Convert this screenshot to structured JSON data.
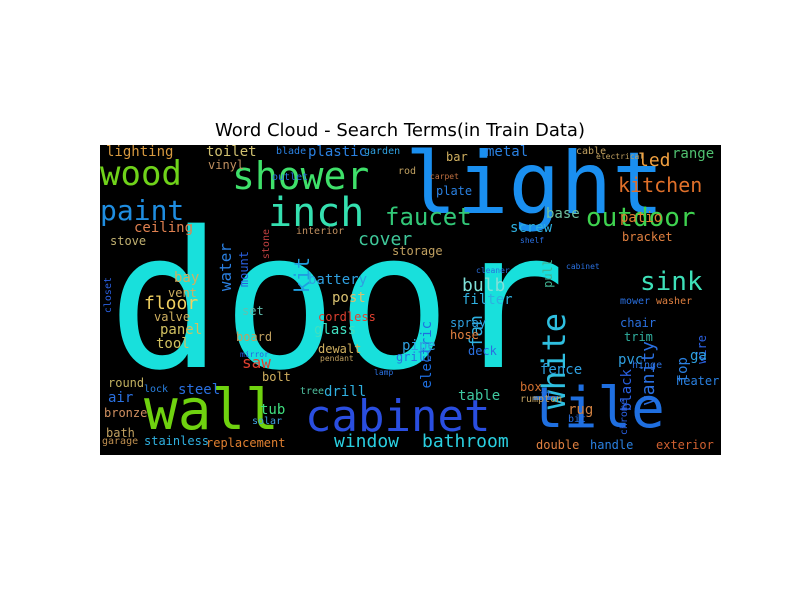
{
  "title": "Word Cloud - Search Terms(in Train Data)",
  "colors": {
    "background": "#000000",
    "page": "#ffffff"
  },
  "words": [
    {
      "text": "door",
      "color": "#18e0dc"
    },
    {
      "text": "light",
      "color": "#1a8ff0"
    },
    {
      "text": "wall",
      "color": "#6fd20f"
    },
    {
      "text": "tile",
      "color": "#1f6fe0"
    },
    {
      "text": "cabinet",
      "color": "#2a4ee0"
    },
    {
      "text": "shower",
      "color": "#3fe06a"
    },
    {
      "text": "inch",
      "color": "#35e0b0"
    },
    {
      "text": "wood",
      "color": "#6fd21a"
    },
    {
      "text": "paint",
      "color": "#1f8de0"
    },
    {
      "text": "white",
      "color": "#2fbfe0"
    },
    {
      "text": "faucet",
      "color": "#32c878"
    },
    {
      "text": "outdoor",
      "color": "#3ed24f"
    },
    {
      "text": "kitchen",
      "color": "#e0702a"
    },
    {
      "text": "sink",
      "color": "#3ee0b8"
    },
    {
      "text": "window",
      "color": "#2acfe0"
    },
    {
      "text": "bathroom",
      "color": "#2acfe0"
    },
    {
      "text": "cover",
      "color": "#3fc89a"
    },
    {
      "text": "floor",
      "color": "#f0d060"
    },
    {
      "text": "vanity",
      "color": "#2a6fe0"
    },
    {
      "text": "led",
      "color": "#f0a040"
    },
    {
      "text": "lighting",
      "color": "#d89a40"
    },
    {
      "text": "toilet",
      "color": "#d0c070"
    },
    {
      "text": "water",
      "color": "#2a7fe0"
    },
    {
      "text": "kit",
      "color": "#1f9fe0"
    },
    {
      "text": "fan",
      "color": "#2fb0e0"
    },
    {
      "text": "bulb",
      "color": "#7fe0d8"
    },
    {
      "text": "plastic",
      "color": "#2a80e0"
    },
    {
      "text": "metal",
      "color": "#2a80e0"
    },
    {
      "text": "ceiling",
      "color": "#e08050"
    },
    {
      "text": "steel",
      "color": "#2a70e0"
    },
    {
      "text": "saw",
      "color": "#e04030"
    },
    {
      "text": "drill",
      "color": "#2fb0e0"
    },
    {
      "text": "post",
      "color": "#d8c070"
    },
    {
      "text": "glass",
      "color": "#40e0c0"
    },
    {
      "text": "panel",
      "color": "#d0c060"
    },
    {
      "text": "tool",
      "color": "#d0c060"
    },
    {
      "text": "air",
      "color": "#2a70e0"
    },
    {
      "text": "bronze",
      "color": "#d09060"
    },
    {
      "text": "tub",
      "color": "#40e080"
    },
    {
      "text": "bath",
      "color": "#c0a060"
    },
    {
      "text": "stainless",
      "color": "#2fb0e0"
    },
    {
      "text": "replacement",
      "color": "#e08030"
    },
    {
      "text": "electric",
      "color": "#1f6fe0"
    },
    {
      "text": "filter",
      "color": "#2fb0e0"
    },
    {
      "text": "pipe",
      "color": "#2fa0e0"
    },
    {
      "text": "fence",
      "color": "#2fa0e0"
    },
    {
      "text": "screw",
      "color": "#2fb0e0"
    },
    {
      "text": "base",
      "color": "#6fc0a0"
    },
    {
      "text": "patio",
      "color": "#e08030"
    },
    {
      "text": "range",
      "color": "#50c070"
    },
    {
      "text": "black",
      "color": "#2a60e0"
    },
    {
      "text": "table",
      "color": "#3fc8a0"
    },
    {
      "text": "rug",
      "color": "#d08040"
    },
    {
      "text": "handle",
      "color": "#2a80e0"
    },
    {
      "text": "exterior",
      "color": "#d06030"
    },
    {
      "text": "double",
      "color": "#e08040"
    },
    {
      "text": "heater",
      "color": "#2a80e0"
    },
    {
      "text": "pvc",
      "color": "#2fa0e0"
    },
    {
      "text": "wire",
      "color": "#2a60e0"
    },
    {
      "text": "top",
      "color": "#2a80e0"
    },
    {
      "text": "ga",
      "color": "#2fa0e0"
    },
    {
      "text": "trim",
      "color": "#30b0a0"
    },
    {
      "text": "chair",
      "color": "#2a70e0"
    },
    {
      "text": "bay",
      "color": "#d0b060"
    },
    {
      "text": "vent",
      "color": "#d0b060"
    },
    {
      "text": "valve",
      "color": "#d0b060"
    },
    {
      "text": "round",
      "color": "#c0b060"
    },
    {
      "text": "battery",
      "color": "#2fa0e0"
    },
    {
      "text": "cordless",
      "color": "#e04030"
    },
    {
      "text": "dewalt",
      "color": "#d0b060"
    },
    {
      "text": "set",
      "color": "#60c0b0"
    },
    {
      "text": "board",
      "color": "#c0a060"
    },
    {
      "text": "bolt",
      "color": "#d0b060"
    },
    {
      "text": "spray",
      "color": "#2fa0e0"
    },
    {
      "text": "hose",
      "color": "#e08040"
    },
    {
      "text": "grill",
      "color": "#2a70e0"
    },
    {
      "text": "deck",
      "color": "#2a70e0"
    },
    {
      "text": "box",
      "color": "#d07030"
    },
    {
      "text": "bar",
      "color": "#d0b060"
    },
    {
      "text": "stove",
      "color": "#c0b070"
    },
    {
      "text": "storage",
      "color": "#c0a060"
    },
    {
      "text": "garage",
      "color": "#c09050"
    },
    {
      "text": "solar",
      "color": "#40a0e0"
    },
    {
      "text": "lock",
      "color": "#2a80e0"
    },
    {
      "text": "tree",
      "color": "#50c0a0"
    },
    {
      "text": "blade",
      "color": "#2a80e0"
    },
    {
      "text": "vinyl",
      "color": "#c09060"
    },
    {
      "text": "garden",
      "color": "#2fa0e0"
    },
    {
      "text": "plate",
      "color": "#2a80e0"
    },
    {
      "text": "bracket",
      "color": "#e08040"
    },
    {
      "text": "outlet",
      "color": "#2a70e0"
    },
    {
      "text": "interior",
      "color": "#c09060"
    },
    {
      "text": "mount",
      "color": "#2a60e0"
    },
    {
      "text": "closet",
      "color": "#2a60e0"
    },
    {
      "text": "pull",
      "color": "#40b090"
    },
    {
      "text": "mower",
      "color": "#2a70e0"
    },
    {
      "text": "washer",
      "color": "#e08040"
    },
    {
      "text": "chrome",
      "color": "#2a60e0"
    },
    {
      "text": "cable",
      "color": "#c0a060"
    },
    {
      "text": "rod",
      "color": "#c0a060"
    },
    {
      "text": "ft",
      "color": "#2a70e0"
    },
    {
      "text": "bit",
      "color": "#2a70e0"
    },
    {
      "text": "rumpton",
      "color": "#c0a060"
    },
    {
      "text": "hinge",
      "color": "#2a70e0"
    },
    {
      "text": "stone",
      "color": "#c04040"
    },
    {
      "text": "cleaner",
      "color": "#2a70e0"
    },
    {
      "text": "shelf",
      "color": "#2a70e0"
    },
    {
      "text": "lamp",
      "color": "#2a70e0"
    },
    {
      "text": "pendant",
      "color": "#c0a060"
    },
    {
      "text": "mirror",
      "color": "#2a60e0"
    },
    {
      "text": "carpet",
      "color": "#c07040"
    },
    {
      "text": "electrical",
      "color": "#c0a060"
    },
    {
      "text": "cabinet",
      "color": "#2a70e0"
    }
  ]
}
